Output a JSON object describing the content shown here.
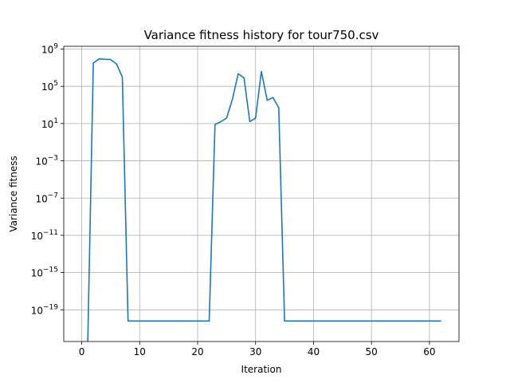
{
  "chart_data": {
    "type": "line",
    "title": "Variance fitness history for tour750.csv",
    "xlabel": "Iteration",
    "ylabel": "Variance fitness",
    "xlim": [
      -3.1,
      65.1
    ],
    "ylim_log10": [
      -22.4,
      9.3
    ],
    "yscale": "log",
    "grid": true,
    "xticks": [
      0,
      10,
      20,
      30,
      40,
      50,
      60
    ],
    "yticks": [
      {
        "exp": 9,
        "base": "10",
        "sup": "9"
      },
      {
        "exp": 5,
        "base": "10",
        "sup": "5"
      },
      {
        "exp": 1,
        "base": "10",
        "sup": "1"
      },
      {
        "exp": -3,
        "base": "10",
        "sup": "−3"
      },
      {
        "exp": -7,
        "base": "10",
        "sup": "−7"
      },
      {
        "exp": -11,
        "base": "10",
        "sup": "−11"
      },
      {
        "exp": -15,
        "base": "10",
        "sup": "−15"
      },
      {
        "exp": -19,
        "base": "10",
        "sup": "−19"
      }
    ],
    "series": [
      {
        "color": "#1f77b4",
        "x": [
          1,
          2,
          3,
          4,
          5,
          6,
          7,
          8,
          9,
          10,
          11,
          12,
          13,
          14,
          15,
          16,
          17,
          18,
          19,
          20,
          21,
          22,
          23,
          24,
          25,
          26,
          27,
          28,
          29,
          30,
          31,
          32,
          33,
          34,
          35,
          36,
          37,
          38,
          39,
          40,
          41,
          42,
          43,
          44,
          45,
          46,
          47,
          48,
          49,
          50,
          51,
          52,
          53,
          54,
          55,
          56,
          57,
          58,
          59,
          60,
          61,
          62
        ],
        "log10_y": [
          -24,
          7.5,
          7.95,
          7.9,
          7.88,
          7.4,
          6.0,
          -20.2,
          -20.2,
          -20.2,
          -20.2,
          -20.2,
          -20.2,
          -20.2,
          -20.2,
          -20.2,
          -20.2,
          -20.2,
          -20.2,
          -20.2,
          -20.2,
          -20.2,
          0.9,
          1.2,
          1.6,
          3.6,
          6.35,
          5.9,
          1.2,
          1.6,
          6.6,
          3.5,
          3.8,
          2.7,
          -20.2,
          -20.2,
          -20.2,
          -20.2,
          -20.2,
          -20.2,
          -20.2,
          -20.2,
          -20.2,
          -20.2,
          -20.2,
          -20.2,
          -20.2,
          -20.2,
          -20.2,
          -20.2,
          -20.2,
          -20.2,
          -20.2,
          -20.2,
          -20.2,
          -20.2,
          -20.2,
          -20.2,
          -20.2,
          -20.2,
          -20.2,
          -20.2
        ]
      }
    ]
  }
}
